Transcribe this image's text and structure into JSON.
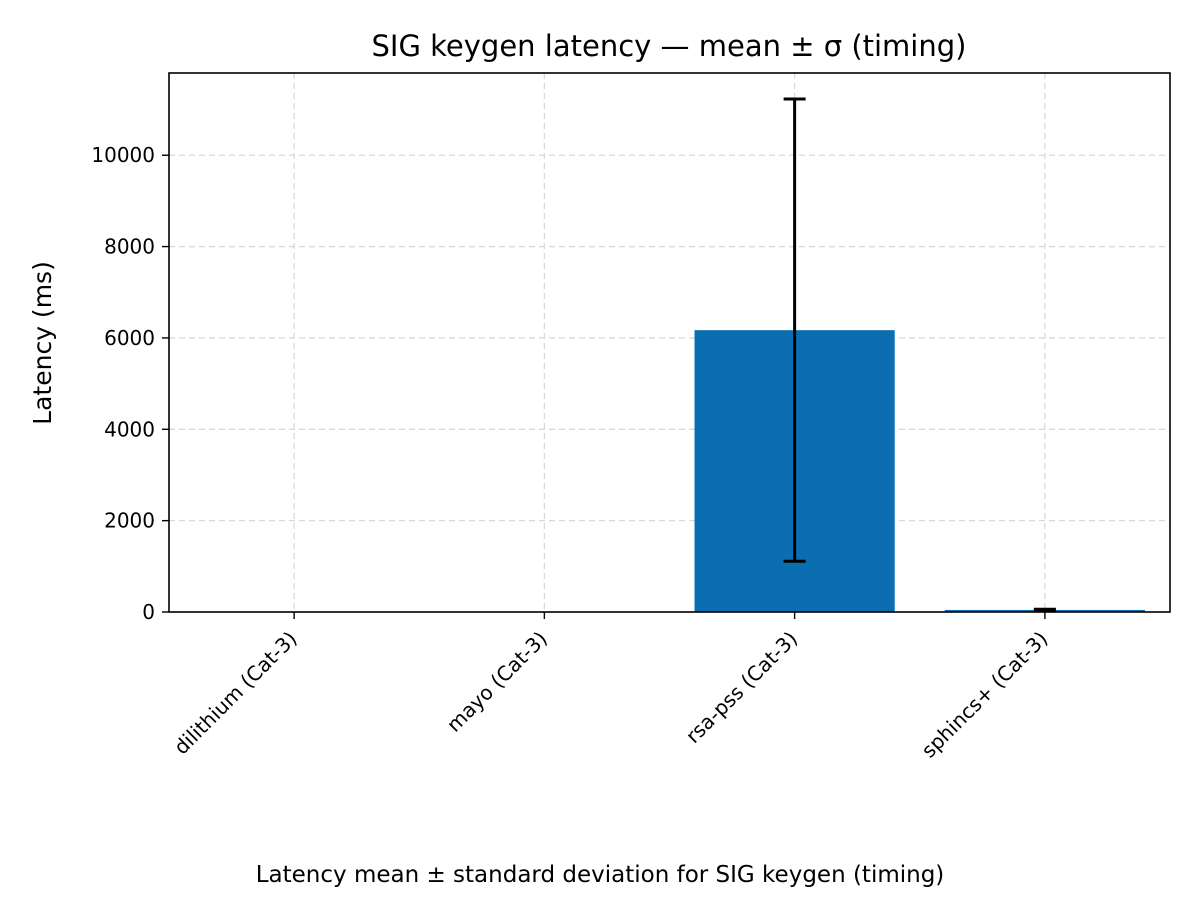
{
  "chart_data": {
    "type": "bar",
    "title": "SIG keygen latency — mean ± σ (timing)",
    "xlabel": "",
    "ylabel": "Latency (ms)",
    "categories": [
      "dilithium (Cat-3)",
      "mayo (Cat-3)",
      "rsa-pss (Cat-3)",
      "sphincs+ (Cat-3)"
    ],
    "values": [
      0.15,
      0.3,
      6170,
      45
    ],
    "errors": [
      0.05,
      0.1,
      5060,
      15
    ],
    "ylim": [
      0,
      11800
    ],
    "yticks": [
      0,
      2000,
      4000,
      6000,
      8000,
      10000
    ],
    "grid": true,
    "bar_color": "#0a6eb0",
    "error_color": "#000000"
  },
  "caption": "Latency mean ± standard deviation for SIG keygen (timing)"
}
